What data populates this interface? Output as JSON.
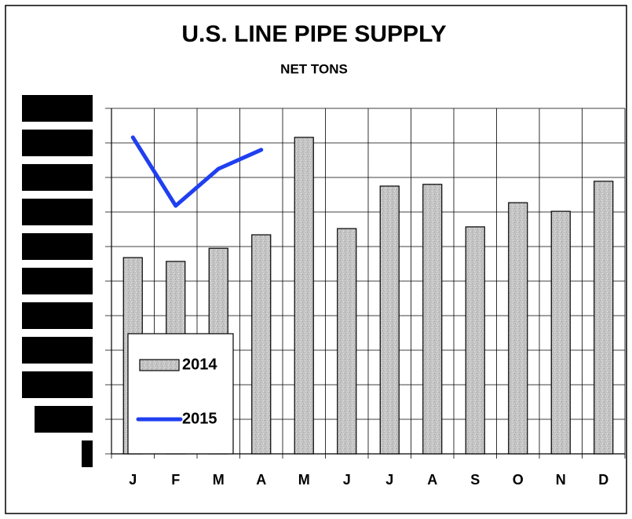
{
  "chart_data": {
    "type": "bar-line",
    "title": "U.S. LINE PIPE SUPPLY",
    "subtitle": "NET TONS",
    "categories": [
      "J",
      "F",
      "M",
      "A",
      "M",
      "J",
      "J",
      "A",
      "S",
      "O",
      "N",
      "D"
    ],
    "series": [
      {
        "name": "2014",
        "type": "bar",
        "color": "#c4c4c4",
        "values": [
          5.68,
          5.57,
          5.95,
          6.34,
          9.16,
          6.52,
          7.75,
          7.8,
          6.57,
          7.27,
          7.02,
          7.89
        ]
      },
      {
        "name": "2015",
        "type": "line",
        "color": "#1f3ff0",
        "values": [
          9.16,
          7.18,
          8.25,
          8.8,
          null,
          null,
          null,
          null,
          null,
          null,
          null,
          null
        ]
      }
    ],
    "ylim": [
      0,
      10
    ],
    "yticks": [
      0,
      1,
      2,
      3,
      4,
      5,
      6,
      7,
      8,
      9,
      10
    ],
    "grid": true,
    "legend": "lower left"
  }
}
